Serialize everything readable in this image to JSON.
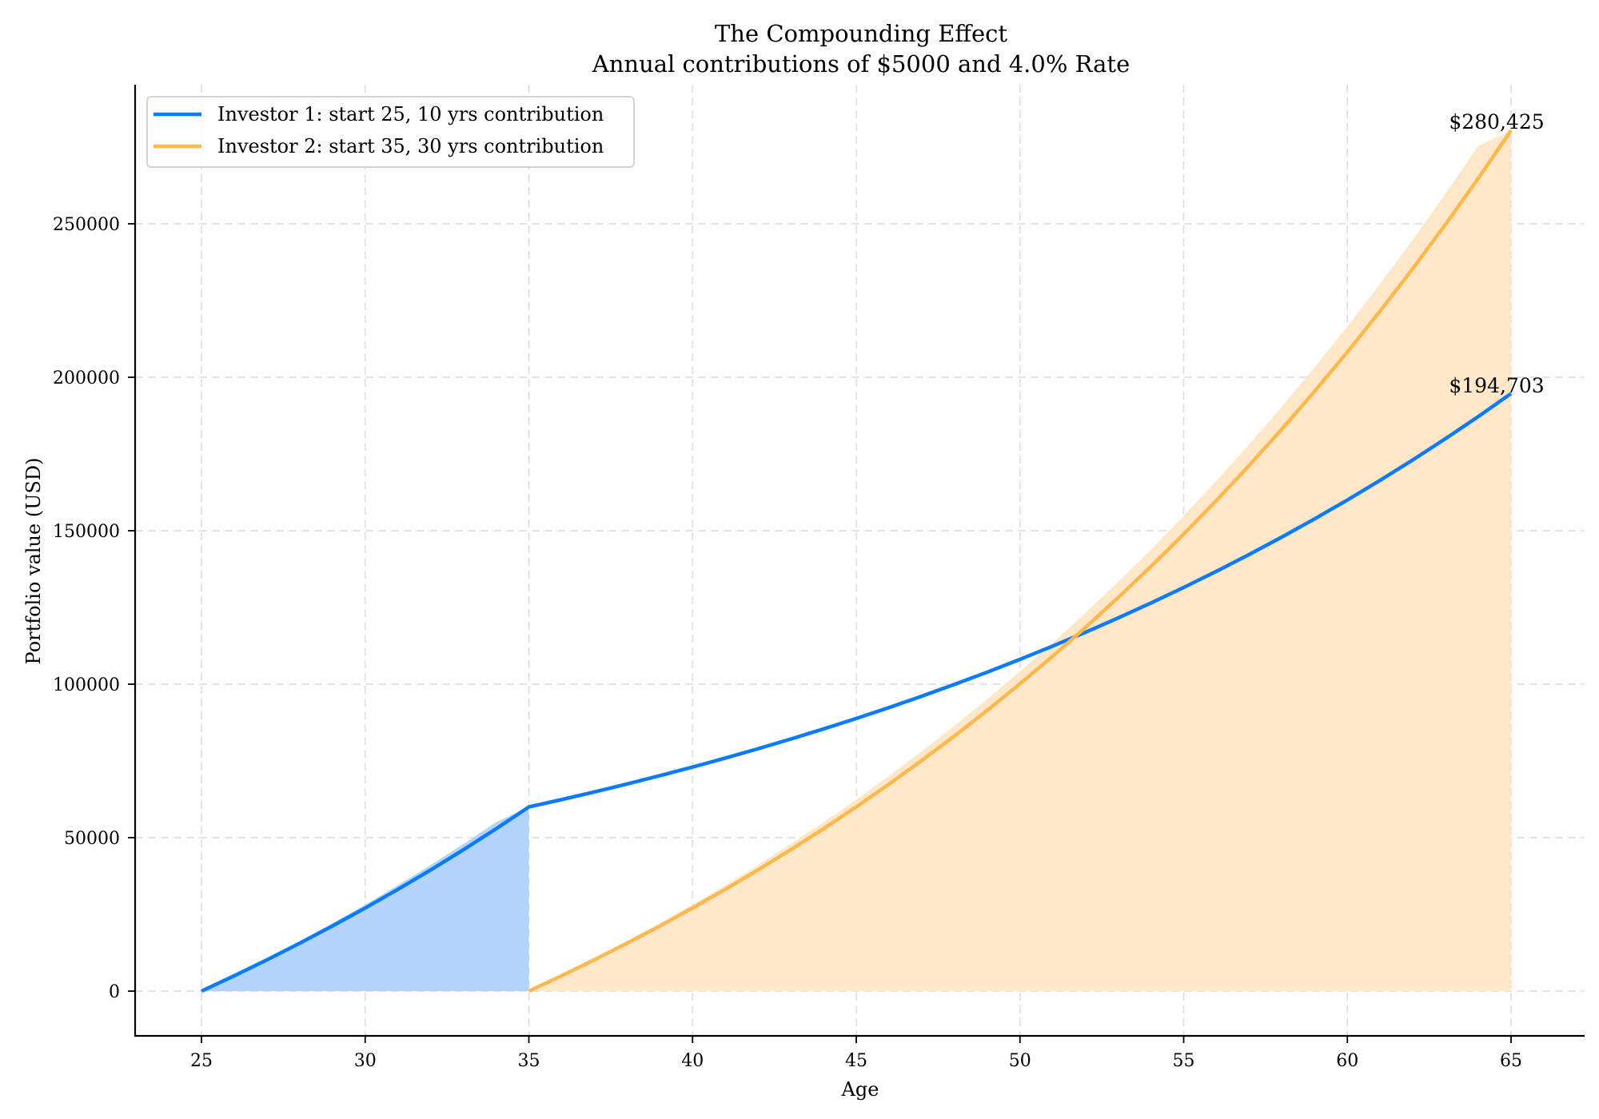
{
  "chart_data": {
    "type": "line",
    "title": "The Compounding Effect",
    "subtitle": "Annual contributions of $5000 and 4.0% Rate",
    "xlabel": "Age",
    "ylabel": "Portfolio value (USD)",
    "xlim": [
      23,
      67
    ],
    "ylim": [
      -14000,
      295000
    ],
    "xticks": [
      25,
      30,
      35,
      40,
      45,
      50,
      55,
      60,
      65
    ],
    "yticks": [
      0,
      50000,
      100000,
      150000,
      200000,
      250000
    ],
    "xtick_labels": [
      "25",
      "30",
      "35",
      "40",
      "45",
      "50",
      "55",
      "60",
      "65"
    ],
    "ytick_labels": [
      "0",
      "50000",
      "100000",
      "150000",
      "200000",
      "250000"
    ],
    "grid": true,
    "legend_position": "upper left",
    "series": [
      {
        "name": "Investor 1: start 25, 10 yrs contribution",
        "color": "#0a7bff",
        "fill_color": "#b3d5fd",
        "fill_range": [
          25,
          35
        ],
        "x": [
          25,
          26,
          27,
          28,
          29,
          30,
          31,
          32,
          33,
          34,
          35,
          36,
          37,
          38,
          39,
          40,
          41,
          42,
          43,
          44,
          45,
          46,
          47,
          48,
          49,
          50,
          51,
          52,
          53,
          54,
          55,
          56,
          57,
          58,
          59,
          60,
          61,
          62,
          63,
          64,
          65
        ],
        "values": [
          0,
          5200,
          10608,
          16232,
          22082,
          28165,
          34491,
          41071,
          47914,
          55030,
          62432,
          64929,
          67526,
          70227,
          73036,
          75958,
          78996,
          82156,
          85442,
          88860,
          92414,
          96111,
          99955,
          103953,
          108111,
          112436,
          116933,
          121611,
          126475,
          131534,
          136796,
          142268,
          147958,
          153876,
          160031,
          166433,
          173090,
          180014,
          187214,
          194703,
          194703
        ],
        "end_annotation": "$194,703"
      },
      {
        "name": "Investor 2: start 35, 30 yrs contribution",
        "color": "#ffb84d",
        "fill_color": "#ffe7c7",
        "fill_range": [
          35,
          65
        ],
        "x": [
          35,
          36,
          37,
          38,
          39,
          40,
          41,
          42,
          43,
          44,
          45,
          46,
          47,
          48,
          49,
          50,
          51,
          52,
          53,
          54,
          55,
          56,
          57,
          58,
          59,
          60,
          61,
          62,
          63,
          64,
          65
        ],
        "values": [
          0,
          5200,
          10608,
          16232,
          22082,
          28165,
          34491,
          41071,
          47914,
          55030,
          62432,
          70129,
          78134,
          86460,
          95118,
          104123,
          113488,
          123227,
          133356,
          143890,
          154846,
          166240,
          178090,
          190413,
          203230,
          216559,
          230421,
          244838,
          259831,
          275424,
          280425
        ],
        "end_annotation": "$280,425"
      }
    ]
  },
  "legend": {
    "items": [
      {
        "label": "Investor 1: start 25, 10 yrs contribution",
        "color": "#0a7bff"
      },
      {
        "label": "Investor 2: start 35, 30 yrs contribution",
        "color": "#ffb84d"
      }
    ]
  },
  "annotations": {
    "investor2_final": "$280,425",
    "investor1_final": "$194,703"
  }
}
